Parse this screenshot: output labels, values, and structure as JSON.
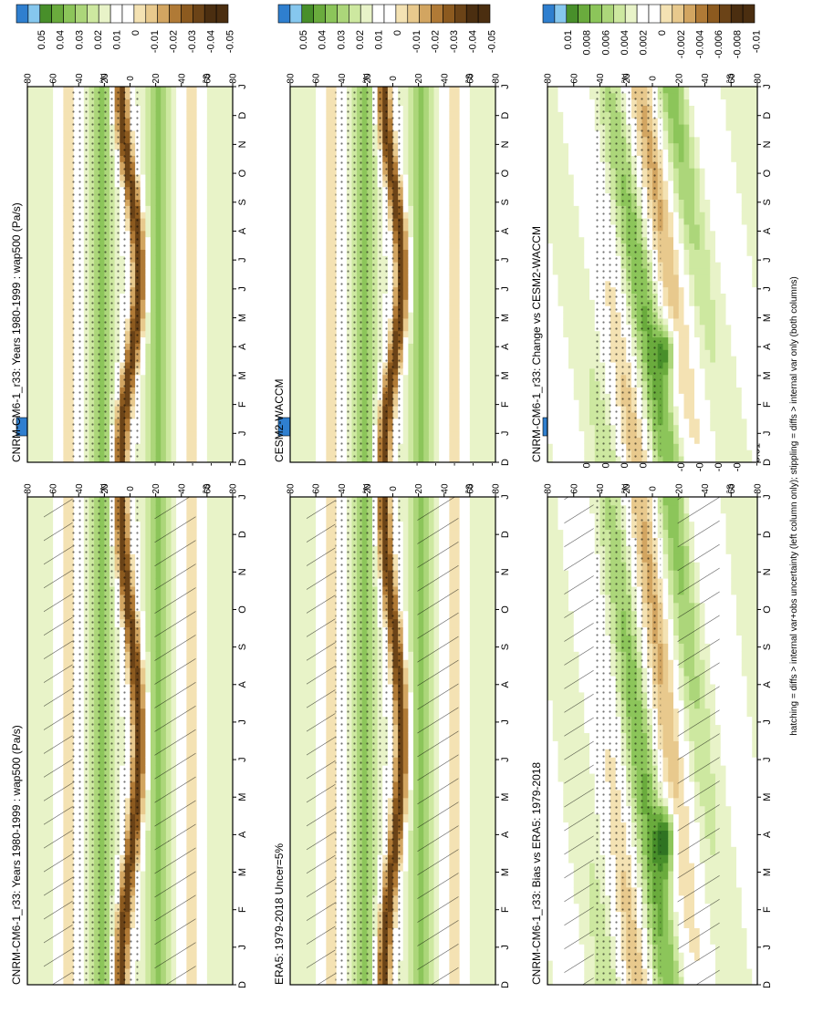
{
  "footnote": "hatching = diffs > internal var+obs uncertainty (left column only); stippling = diffs > internal var only (both columns)",
  "lon_ticks": [
    "80",
    "60",
    "40",
    "20",
    "0",
    "20",
    "40",
    "60",
    "80"
  ],
  "lat_hemi": [
    "N",
    "S"
  ],
  "month_ticks": [
    "D",
    "J",
    "F",
    "M",
    "A",
    "M",
    "J",
    "J",
    "A",
    "S",
    "O",
    "N",
    "D",
    "J"
  ],
  "colors": {
    "neg5": "#4b2e10",
    "neg4": "#6b4317",
    "neg3": "#8c5a1f",
    "neg2": "#b07a36",
    "neg15": "#d2a561",
    "neg1": "#e8c98d",
    "neg05": "#f4e2b3",
    "zero": "#ffffff",
    "pos05": "#e8f3c8",
    "pos1": "#cde8a0",
    "pos2": "#acd67a",
    "pos3": "#8cc55a",
    "pos4": "#6aab3d",
    "pos5": "#488f2a",
    "pos6": "#2f7322",
    "blue1": "#86c7ee",
    "blue2": "#2f7fcf"
  },
  "chart_data": [
    {
      "type": "heatmap",
      "title": "CNRM-CM6-1_r33: Years 1980-1999 : wap500 (Pa/s)",
      "variable": "wap500",
      "x": [
        "D",
        "J",
        "F",
        "M",
        "A",
        "M",
        "J",
        "J",
        "A",
        "S",
        "O",
        "N",
        "D",
        "J"
      ],
      "y": [
        "80",
        "60",
        "40",
        "20",
        "0",
        "20",
        "40",
        "60",
        "80"
      ],
      "colorbar": [
        "0.05",
        "0.04",
        "0.03",
        "0.02",
        "0.01",
        "0",
        "-0.01",
        "-0.02",
        "-0.03",
        "-0.04",
        "-0.05"
      ],
      "hatching": true,
      "stippling": true
    },
    {
      "type": "heatmap",
      "title": "CNRM-CM6-1_r33: Years 1980-1999 : wap500 (Pa/s)",
      "variable": "wap500",
      "x": [
        "D",
        "J",
        "F",
        "M",
        "A",
        "M",
        "J",
        "J",
        "A",
        "S",
        "O",
        "N",
        "D",
        "J"
      ],
      "y": [
        "80",
        "60",
        "40",
        "20",
        "0",
        "20",
        "40",
        "60",
        "80"
      ],
      "colorbar": [
        "0.05",
        "0.04",
        "0.03",
        "0.02",
        "0.01",
        "0",
        "-0.01",
        "-0.02",
        "-0.03",
        "-0.04",
        "-0.05"
      ],
      "hatching": false,
      "stippling": true
    },
    {
      "type": "heatmap",
      "title": "ERA5: 1979-2018 Uncer=5%",
      "variable": "wap500",
      "x": [
        "D",
        "J",
        "F",
        "M",
        "A",
        "M",
        "J",
        "J",
        "A",
        "S",
        "O",
        "N",
        "D",
        "J"
      ],
      "y": [
        "80",
        "60",
        "40",
        "20",
        "0",
        "20",
        "40",
        "60",
        "80"
      ],
      "colorbar": [
        "0.05",
        "0.04",
        "0.03",
        "0.02",
        "0.01",
        "0",
        "-0.01",
        "-0.02",
        "-0.03",
        "-0.04",
        "-0.05"
      ],
      "hatching": true,
      "stippling": true
    },
    {
      "type": "heatmap",
      "title": "CESM2-WACCM",
      "variable": "wap500",
      "x": [
        "D",
        "J",
        "F",
        "M",
        "A",
        "M",
        "J",
        "J",
        "A",
        "S",
        "O",
        "N",
        "D",
        "J"
      ],
      "y": [
        "80",
        "60",
        "40",
        "20",
        "0",
        "20",
        "40",
        "60",
        "80"
      ],
      "colorbar": [
        "0.05",
        "0.04",
        "0.03",
        "0.02",
        "0.01",
        "0",
        "-0.01",
        "-0.02",
        "-0.03",
        "-0.04",
        "-0.05"
      ],
      "hatching": false,
      "stippling": true
    },
    {
      "type": "heatmap",
      "title": "CNRM-CM6-1_r33: Bias vs ERA5: 1979-2018",
      "variable": "wap500 difference",
      "x": [
        "D",
        "J",
        "F",
        "M",
        "A",
        "M",
        "J",
        "J",
        "A",
        "S",
        "O",
        "N",
        "D",
        "J"
      ],
      "y": [
        "80",
        "60",
        "40",
        "20",
        "0",
        "20",
        "40",
        "60",
        "80"
      ],
      "colorbar": [
        "0.01",
        "0.008",
        "0.006",
        "0.004",
        "0.002",
        "0",
        "-0.002",
        "-0.004",
        "-0.006",
        "-0.008",
        "-0.01"
      ],
      "hatching": true,
      "stippling": true
    },
    {
      "type": "heatmap",
      "title": "CNRM-CM6-1_r33: Change vs CESM2-WACCM",
      "variable": "wap500 difference",
      "x": [
        "D",
        "J",
        "F",
        "M",
        "A",
        "M",
        "J",
        "J",
        "A",
        "S",
        "O",
        "N",
        "D",
        "J"
      ],
      "y": [
        "80",
        "60",
        "40",
        "20",
        "0",
        "20",
        "40",
        "60",
        "80"
      ],
      "colorbar": [
        "0.01",
        "0.008",
        "0.006",
        "0.004",
        "0.002",
        "0",
        "-0.002",
        "-0.004",
        "-0.006",
        "-0.008",
        "-0.01"
      ],
      "hatching": false,
      "stippling": true
    }
  ]
}
